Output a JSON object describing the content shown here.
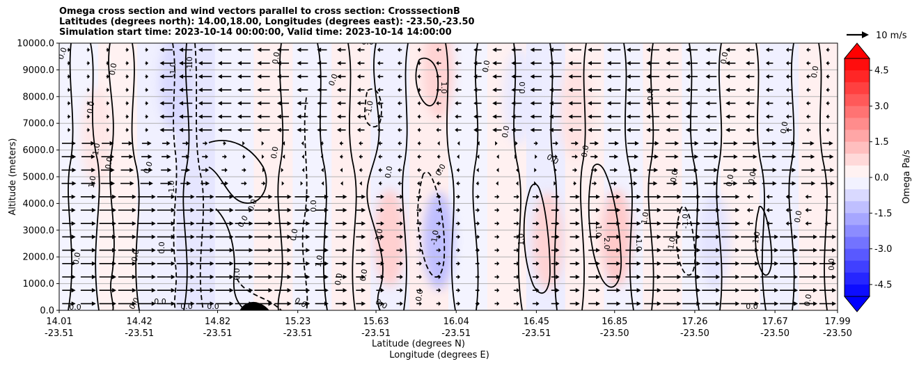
{
  "chart_data": {
    "type": "contour",
    "title_lines": [
      "Omega cross section and wind vectors parallel to cross section: CrosssectionB",
      "Latitudes (degrees north): 14.00,18.00, Longitudes (degrees east): -23.50,-23.50",
      "Simulation start time: 2023-10-14 00:00:00, Valid time: 2023-10-14 14:00:00"
    ],
    "xlabel": "Latitude (degrees N)",
    "xlabel2": "Longitude (degrees E)",
    "ylabel": "Altitude (meters)",
    "x_ticks": [
      {
        "lat": "14.01",
        "lon": "-23.51"
      },
      {
        "lat": "14.42",
        "lon": "-23.51"
      },
      {
        "lat": "14.82",
        "lon": "-23.51"
      },
      {
        "lat": "15.23",
        "lon": "-23.51"
      },
      {
        "lat": "15.63",
        "lon": "-23.51"
      },
      {
        "lat": "16.04",
        "lon": "-23.51"
      },
      {
        "lat": "16.45",
        "lon": "-23.51"
      },
      {
        "lat": "16.85",
        "lon": "-23.50"
      },
      {
        "lat": "17.26",
        "lon": "-23.50"
      },
      {
        "lat": "17.67",
        "lon": "-23.50"
      },
      {
        "lat": "17.99",
        "lon": "-23.50"
      }
    ],
    "x_range": [
      14.01,
      17.99
    ],
    "y_ticks": [
      "0.0",
      "1000.0",
      "2000.0",
      "3000.0",
      "4000.0",
      "5000.0",
      "6000.0",
      "7000.0",
      "8000.0",
      "9000.0",
      "10000.0"
    ],
    "ylim": [
      0,
      10000
    ],
    "grid": "horizontal",
    "colorbar": {
      "label": "Omega Pa/s",
      "ticks": [
        "4.5",
        "3.0",
        "1.5",
        "0.0",
        "-1.5",
        "-3.0",
        "-4.5"
      ],
      "range": [
        -5.0,
        5.0
      ],
      "extend": "both",
      "colormap": "bwr"
    },
    "quiver_key": {
      "label": "10 m/s",
      "placement": "top-right"
    },
    "omega_fields": [
      {
        "lat": 15.7,
        "alt": 2700,
        "value": 1.8
      },
      {
        "lat": 15.95,
        "alt": 2600,
        "value": -2.4
      },
      {
        "lat": 15.95,
        "alt": 9000,
        "value": 1.6
      },
      {
        "lat": 16.51,
        "alt": 2600,
        "value": 1.6
      },
      {
        "lat": 16.86,
        "alt": 2700,
        "value": 2.0
      },
      {
        "lat": 16.36,
        "alt": 8000,
        "value": -0.8
      },
      {
        "lat": 16.65,
        "alt": 7500,
        "value": 1.1
      },
      {
        "lat": 17.36,
        "alt": 2600,
        "value": -1.0
      },
      {
        "lat": 14.6,
        "alt": 8500,
        "value": -1.4
      },
      {
        "lat": 14.2,
        "alt": 6500,
        "value": 0.9
      }
    ],
    "contour_labels": [
      "0.0",
      "1.0",
      "-1.0",
      "2.0"
    ],
    "colors": {
      "positive": "#ff0000",
      "negative": "#0000ff",
      "contour": "#000000",
      "grid": "#b0b0b0"
    }
  }
}
